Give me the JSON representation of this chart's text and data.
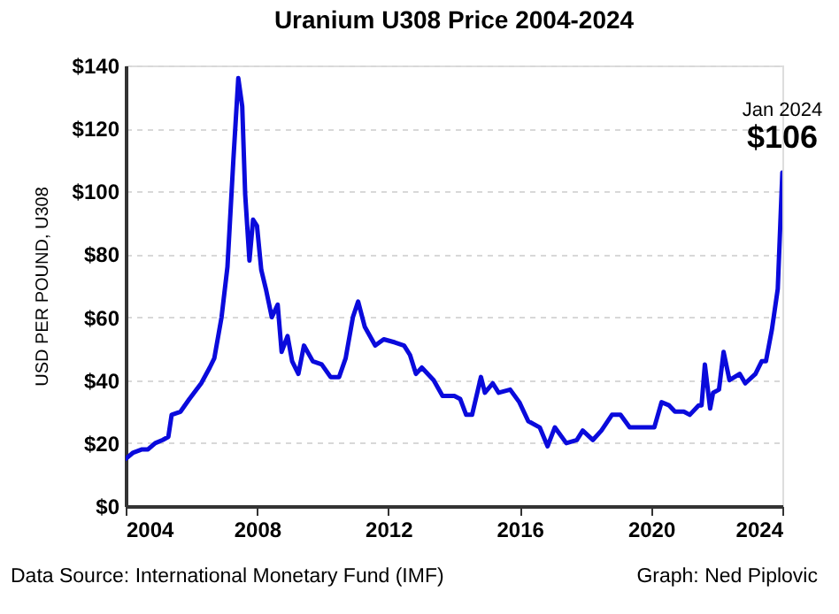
{
  "chart_data": {
    "type": "line",
    "title": "Uranium U308 Price 2004-2024",
    "ylabel": "USD PER POUND, U308",
    "x": [
      2004.0,
      2004.23,
      2004.5,
      2004.68,
      2004.9,
      2005.13,
      2005.3,
      2005.4,
      2005.67,
      2005.94,
      2006.3,
      2006.56,
      2006.7,
      2006.92,
      2007.1,
      2007.28,
      2007.43,
      2007.55,
      2007.64,
      2007.77,
      2007.88,
      2008.0,
      2008.13,
      2008.27,
      2008.45,
      2008.63,
      2008.75,
      2008.93,
      2009.07,
      2009.26,
      2009.43,
      2009.7,
      2009.97,
      2010.24,
      2010.5,
      2010.7,
      2010.92,
      2011.08,
      2011.28,
      2011.6,
      2011.86,
      2012.2,
      2012.48,
      2012.66,
      2012.84,
      2013.02,
      2013.38,
      2013.65,
      2014.01,
      2014.19,
      2014.37,
      2014.55,
      2014.73,
      2014.82,
      2014.94,
      2015.18,
      2015.36,
      2015.71,
      2015.99,
      2016.26,
      2016.61,
      2016.85,
      2017.07,
      2017.42,
      2017.74,
      2017.92,
      2018.23,
      2018.49,
      2018.81,
      2019.07,
      2019.35,
      2019.57,
      2019.93,
      2020.1,
      2020.32,
      2020.55,
      2020.73,
      2021.0,
      2021.18,
      2021.45,
      2021.54,
      2021.64,
      2021.8,
      2021.89,
      2022.07,
      2022.21,
      2022.39,
      2022.7,
      2022.87,
      2023.18,
      2023.37,
      2023.5,
      2023.68,
      2023.86,
      2024.0
    ],
    "series": [
      {
        "color": "#0a0adc",
        "values": [
          15,
          17,
          18,
          18,
          20,
          21,
          22,
          29,
          30,
          34,
          39,
          44,
          47,
          60,
          76,
          110,
          136,
          127,
          99,
          78,
          91,
          89,
          75,
          69,
          60,
          64,
          49,
          54,
          46,
          42,
          51,
          46,
          45,
          41,
          41,
          47,
          60,
          65,
          57,
          51,
          53,
          52,
          51,
          48,
          42,
          44,
          40,
          35,
          35,
          34,
          29,
          29,
          37,
          41,
          36,
          39,
          36,
          37,
          33,
          27,
          25,
          19,
          25,
          20,
          21,
          24,
          21,
          24,
          29,
          29,
          25,
          25,
          25,
          25,
          33,
          32,
          30,
          30,
          29,
          32,
          32,
          45,
          31,
          36,
          37,
          49,
          40,
          42,
          39,
          42,
          46,
          46,
          56,
          69,
          106
        ]
      }
    ],
    "xlim": [
      2004,
      2024
    ],
    "xticks": [
      2004,
      2008,
      2012,
      2016,
      2020,
      2024
    ],
    "ylim": [
      0,
      140
    ],
    "yticks": [
      {
        "value": 0,
        "label": "$0"
      },
      {
        "value": 20,
        "label": "$20"
      },
      {
        "value": 40,
        "label": "$40"
      },
      {
        "value": 60,
        "label": "$60"
      },
      {
        "value": 80,
        "label": "$80"
      },
      {
        "value": 100,
        "label": "$100"
      },
      {
        "value": 120,
        "label": "$120"
      },
      {
        "value": 140,
        "label": "$140"
      }
    ],
    "grid": "y",
    "marker": "none",
    "line_style": "solid",
    "annotations": [
      {
        "text": "Jan 2024",
        "x": 2024,
        "y": 106
      },
      {
        "text": "$106",
        "x": 2024,
        "y": 106
      },
      "Data Source: International Monetary Fund (IMF)",
      "Graph: Ned Piplovic"
    ]
  }
}
